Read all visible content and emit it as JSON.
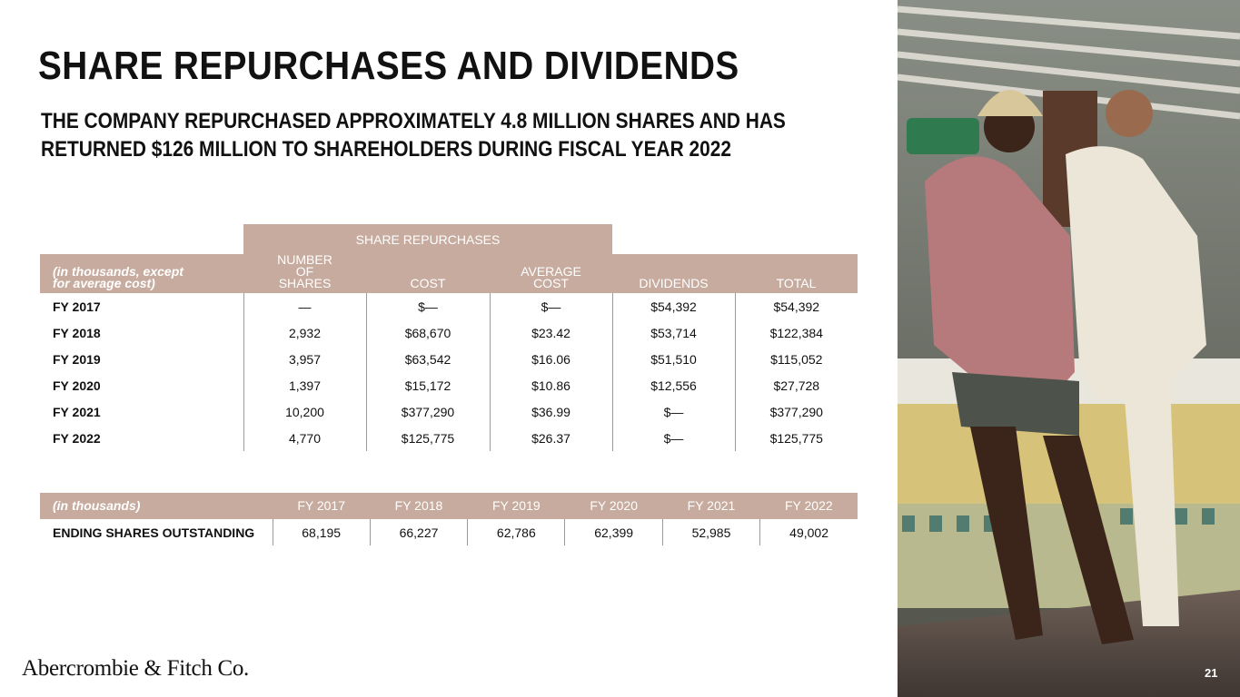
{
  "title": "SHARE REPURCHASES AND DIVIDENDS",
  "subtitle": "THE COMPANY REPURCHASED APPROXIMATELY 4.8 MILLION SHARES AND HAS RETURNED $126 MILLION TO SHAREHOLDERS DURING FISCAL YEAR 2022",
  "table1": {
    "group_header": "SHARE REPURCHASES",
    "columns": [
      "(in thousands, except for average cost)",
      "NUMBER OF SHARES",
      "COST",
      "AVERAGE COST",
      "DIVIDENDS",
      "TOTAL"
    ],
    "rows": [
      [
        "FY 2017",
        "—",
        "$—",
        "$—",
        "$54,392",
        "$54,392"
      ],
      [
        "FY 2018",
        "2,932",
        "$68,670",
        "$23.42",
        "$53,714",
        "$122,384"
      ],
      [
        "FY 2019",
        "3,957",
        "$63,542",
        "$16.06",
        "$51,510",
        "$115,052"
      ],
      [
        "FY 2020",
        "1,397",
        "$15,172",
        "$10.86",
        "$12,556",
        "$27,728"
      ],
      [
        "FY 2021",
        "10,200",
        "$377,290",
        "$36.99",
        "$—",
        "$377,290"
      ],
      [
        "FY 2022",
        "4,770",
        "$125,775",
        "$26.37",
        "$—",
        "$125,775"
      ]
    ]
  },
  "table2": {
    "columns": [
      "(in thousands)",
      "FY 2017",
      "FY 2018",
      "FY 2019",
      "FY 2020",
      "FY 2021",
      "FY 2022"
    ],
    "rows": [
      [
        "ENDING SHARES OUTSTANDING",
        "68,195",
        "66,227",
        "62,786",
        "62,399",
        "52,985",
        "49,002"
      ]
    ]
  },
  "logo": "Abercrombie & Fitch Co.",
  "page_number": "21"
}
